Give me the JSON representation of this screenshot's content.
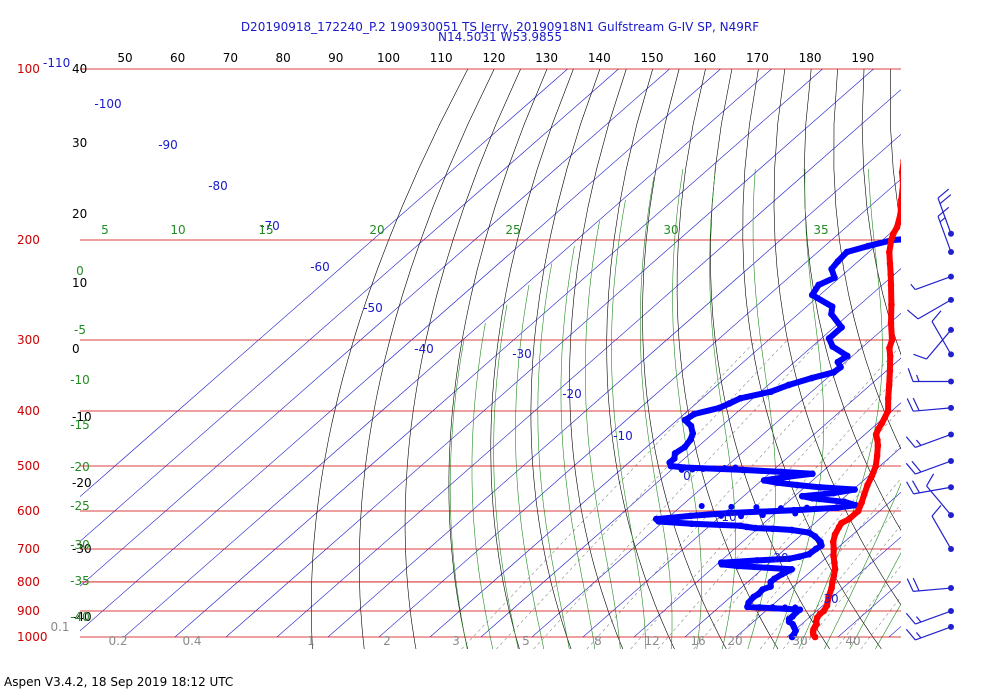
{
  "header": {
    "title_line1": "D20190918_172240_P.2 190930051 TS Jerry, 20190918N1 Gulfstream G-IV SP, N49RF",
    "title_line2": "N14.5031 W53.9855"
  },
  "footer": {
    "text": "Aspen V3.4.2, 18 Sep 2019  18:12 UTC"
  },
  "colors": {
    "temperature": "#ff0000",
    "dewpoint": "#0000ff",
    "isobar": "#cc0000",
    "isotherm": "#1a1acc",
    "dry_adiabat": "#000000",
    "moist_adiabat": "#228b22",
    "mixing_ratio": "#8a8a8a",
    "wind_barb": "#2222cc"
  },
  "chart_data": {
    "type": "skew-t",
    "title": "D20190918_172240_P.2 190930051 TS Jerry, 20190918N1 Gulfstream G-IV SP, N49RF",
    "subtitle": "N14.5031 W53.9855",
    "pressure_axis": {
      "scale": "log",
      "range_hPa": [
        100,
        1000
      ],
      "tick_labels": [
        "100",
        "200",
        "300",
        "400",
        "500",
        "600",
        "700",
        "800",
        "900",
        "1000"
      ],
      "top_extra_label": "-110"
    },
    "height_axis_labels": [
      "40",
      "30",
      "20",
      "10",
      "0",
      "-10",
      "-20",
      "-30",
      "-40"
    ],
    "top_scale_labels": [
      "50",
      "60",
      "70",
      "80",
      "90",
      "100",
      "110",
      "120",
      "130",
      "140",
      "150",
      "160",
      "170",
      "180",
      "190"
    ],
    "isotherm_labels": [
      "-100",
      "-90",
      "-80",
      "-70",
      "-60",
      "-50",
      "-40",
      "-30",
      "-20",
      "-10",
      "0",
      "10",
      "20",
      "30"
    ],
    "moist_adiabat_labels_top": [
      "5",
      "10",
      "15",
      "20",
      "25",
      "30",
      "35"
    ],
    "moist_adiabat_labels_left": [
      "0",
      "-5",
      "-10",
      "-15",
      "-20",
      "-25",
      "-30",
      "-35",
      "-40"
    ],
    "mixing_ratio_labels": [
      "0.1",
      "0.2",
      "0.4",
      "1",
      "2",
      "3",
      "5",
      "8",
      "12",
      "16",
      "20",
      "30",
      "40"
    ],
    "temperature_profile": [
      {
        "p": 1000,
        "t": 25.5
      },
      {
        "p": 990,
        "t": 24.6
      },
      {
        "p": 980,
        "t": 24.0
      },
      {
        "p": 970,
        "t": 23.5
      },
      {
        "p": 960,
        "t": 23.2
      },
      {
        "p": 950,
        "t": 23.0
      },
      {
        "p": 940,
        "t": 22.3
      },
      {
        "p": 925,
        "t": 21.6
      },
      {
        "p": 910,
        "t": 21.3
      },
      {
        "p": 900,
        "t": 21.4
      },
      {
        "p": 880,
        "t": 20.8
      },
      {
        "p": 850,
        "t": 19.2
      },
      {
        "p": 820,
        "t": 17.8
      },
      {
        "p": 800,
        "t": 16.6
      },
      {
        "p": 780,
        "t": 15.5
      },
      {
        "p": 760,
        "t": 14.3
      },
      {
        "p": 740,
        "t": 12.7
      },
      {
        "p": 720,
        "t": 11.0
      },
      {
        "p": 700,
        "t": 9.5
      },
      {
        "p": 680,
        "t": 7.8
      },
      {
        "p": 660,
        "t": 6.5
      },
      {
        "p": 640,
        "t": 5.6
      },
      {
        "p": 630,
        "t": 5.2
      },
      {
        "p": 620,
        "t": 5.8
      },
      {
        "p": 600,
        "t": 5.8
      },
      {
        "p": 580,
        "t": 4.6
      },
      {
        "p": 560,
        "t": 3.2
      },
      {
        "p": 540,
        "t": 1.8
      },
      {
        "p": 520,
        "t": 0.6
      },
      {
        "p": 500,
        "t": -0.8
      },
      {
        "p": 480,
        "t": -2.8
      },
      {
        "p": 460,
        "t": -5.0
      },
      {
        "p": 450,
        "t": -6.3
      },
      {
        "p": 440,
        "t": -7.8
      },
      {
        "p": 430,
        "t": -8.6
      },
      {
        "p": 420,
        "t": -9.2
      },
      {
        "p": 400,
        "t": -10.7
      },
      {
        "p": 380,
        "t": -13.5
      },
      {
        "p": 360,
        "t": -16.3
      },
      {
        "p": 340,
        "t": -19.3
      },
      {
        "p": 320,
        "t": -22.6
      },
      {
        "p": 310,
        "t": -24.5
      },
      {
        "p": 300,
        "t": -25.8
      },
      {
        "p": 280,
        "t": -29.8
      },
      {
        "p": 260,
        "t": -33.8
      },
      {
        "p": 240,
        "t": -38.3
      },
      {
        "p": 230,
        "t": -40.7
      },
      {
        "p": 220,
        "t": -43.3
      },
      {
        "p": 210,
        "t": -46.0
      },
      {
        "p": 200,
        "t": -48.3
      },
      {
        "p": 195,
        "t": -49.3
      },
      {
        "p": 190,
        "t": -50.0
      },
      {
        "p": 180,
        "t": -52.3
      },
      {
        "p": 170,
        "t": -55.3
      },
      {
        "p": 160,
        "t": -58.3
      },
      {
        "p": 152,
        "t": -61.3
      },
      {
        "p": 145,
        "t": -63.6
      }
    ],
    "temperature_outlier": {
      "p": 136,
      "t": -66.2
    },
    "dewpoint_profile": [
      {
        "p": 1000,
        "td": 21.0
      },
      {
        "p": 990,
        "td": 20.8
      },
      {
        "p": 975,
        "td": 20.3
      },
      {
        "p": 960,
        "td": 19.1
      },
      {
        "p": 950,
        "td": 18.3
      },
      {
        "p": 940,
        "td": 17.0
      },
      {
        "p": 930,
        "td": 16.4
      },
      {
        "p": 920,
        "td": 16.5
      },
      {
        "p": 905,
        "td": 16.3
      },
      {
        "p": 895,
        "td": 16.4
      },
      {
        "p": 890,
        "td": 11.0
      },
      {
        "p": 885,
        "td": 5.5
      },
      {
        "p": 870,
        "td": 4.8
      },
      {
        "p": 850,
        "td": 4.5
      },
      {
        "p": 840,
        "td": 4.8
      },
      {
        "p": 825,
        "td": 4.6
      },
      {
        "p": 815,
        "td": 5.5
      },
      {
        "p": 800,
        "td": 4.5
      },
      {
        "p": 790,
        "td": 4.5
      },
      {
        "p": 775,
        "td": 5.0
      },
      {
        "p": 760,
        "td": 5.8
      },
      {
        "p": 750,
        "td": -5.5
      },
      {
        "p": 745,
        "td": -9.0
      },
      {
        "p": 740,
        "td": -9.5
      },
      {
        "p": 733,
        "td": -3.0
      },
      {
        "p": 728,
        "td": 3.0
      },
      {
        "p": 722,
        "td": 4.5
      },
      {
        "p": 715,
        "td": 5.8
      },
      {
        "p": 700,
        "td": 6.0
      },
      {
        "p": 690,
        "td": 6.3
      },
      {
        "p": 680,
        "td": 5.3
      },
      {
        "p": 665,
        "td": 3.0
      },
      {
        "p": 655,
        "td": 1.0
      },
      {
        "p": 648,
        "td": -3.0
      },
      {
        "p": 645,
        "td": -7.0
      },
      {
        "p": 643,
        "td": -10.5
      },
      {
        "p": 640,
        "td": -12.5
      },
      {
        "p": 637,
        "td": -14.0
      },
      {
        "p": 632,
        "td": -24.0
      },
      {
        "p": 626,
        "td": -31.0
      },
      {
        "p": 620,
        "td": -32.0
      },
      {
        "p": 612,
        "td": -26.0
      },
      {
        "p": 605,
        "td": -19.0
      },
      {
        "p": 598,
        "td": -7.0
      },
      {
        "p": 592,
        "td": 1.0
      },
      {
        "p": 586,
        "td": 4.0
      },
      {
        "p": 578,
        "td": 1.0
      },
      {
        "p": 570,
        "td": -6.0
      },
      {
        "p": 565,
        "td": -8.5
      },
      {
        "p": 558,
        "td": -3.0
      },
      {
        "p": 550,
        "td": 0.3
      },
      {
        "p": 545,
        "td": -7.0
      },
      {
        "p": 540,
        "td": -12.0
      },
      {
        "p": 535,
        "td": -16.5
      },
      {
        "p": 530,
        "td": -19.5
      },
      {
        "p": 522,
        "td": -15.5
      },
      {
        "p": 516,
        "td": -11.5
      },
      {
        "p": 512,
        "td": -18.0
      },
      {
        "p": 508,
        "td": -26.0
      },
      {
        "p": 503,
        "td": -38.0
      },
      {
        "p": 500,
        "td": -41.0
      },
      {
        "p": 493,
        "td": -42.0
      },
      {
        "p": 485,
        "td": -42.0
      },
      {
        "p": 475,
        "td": -43.0
      },
      {
        "p": 463,
        "td": -42.5
      },
      {
        "p": 450,
        "td": -43.0
      },
      {
        "p": 438,
        "td": -44.0
      },
      {
        "p": 425,
        "td": -46.0
      },
      {
        "p": 415,
        "td": -48.5
      },
      {
        "p": 405,
        "td": -48.0
      },
      {
        "p": 395,
        "td": -44.5
      },
      {
        "p": 388,
        "td": -43.5
      },
      {
        "p": 380,
        "td": -42.5
      },
      {
        "p": 370,
        "td": -38.0
      },
      {
        "p": 360,
        "td": -36.0
      },
      {
        "p": 350,
        "td": -33.0
      },
      {
        "p": 342,
        "td": -30.0
      },
      {
        "p": 335,
        "td": -29.8
      },
      {
        "p": 328,
        "td": -31.5
      },
      {
        "p": 320,
        "td": -31.0
      },
      {
        "p": 308,
        "td": -36.0
      },
      {
        "p": 298,
        "td": -38.5
      },
      {
        "p": 285,
        "td": -38.5
      },
      {
        "p": 270,
        "td": -43.5
      },
      {
        "p": 262,
        "td": -45.0
      },
      {
        "p": 250,
        "td": -51.5
      },
      {
        "p": 240,
        "td": -52.5
      },
      {
        "p": 233,
        "td": -51.0
      },
      {
        "p": 225,
        "td": -53.5
      },
      {
        "p": 218,
        "td": -54.0
      },
      {
        "p": 210,
        "td": -54.3
      },
      {
        "p": 205,
        "td": -51.5
      },
      {
        "p": 200,
        "td": -48.0
      },
      {
        "p": 196,
        "td": -35.0
      },
      {
        "p": 193,
        "td": -28.5
      }
    ],
    "dewpoint_sparse_points": [
      {
        "p": 508,
        "td": -38.0
      },
      {
        "p": 507,
        "td": -36.0
      },
      {
        "p": 506,
        "td": -34.0
      },
      {
        "p": 505,
        "td": -32.0
      },
      {
        "p": 504,
        "td": -30.0
      },
      {
        "p": 503,
        "td": -28.0
      },
      {
        "p": 610,
        "td": -25.0
      },
      {
        "p": 612,
        "td": -20.0
      },
      {
        "p": 613,
        "td": -16.0
      },
      {
        "p": 610,
        "td": -12.0
      },
      {
        "p": 606,
        "td": -6.0
      },
      {
        "p": 886,
        "td": 8.0
      },
      {
        "p": 886,
        "td": 10.5
      },
      {
        "p": 887,
        "td": 13.0
      },
      {
        "p": 887,
        "td": 15.0
      },
      {
        "p": 588,
        "td": -26.0
      },
      {
        "p": 590,
        "td": -20.0
      },
      {
        "p": 591,
        "td": -15.0
      },
      {
        "p": 593,
        "td": -10.0
      },
      {
        "p": 592,
        "td": -5.0
      }
    ],
    "wind_barbs": [
      {
        "p": 195,
        "dir": 340,
        "spd": 20
      },
      {
        "p": 210,
        "dir": 340,
        "spd": 15
      },
      {
        "p": 232,
        "dir": 250,
        "spd": 5
      },
      {
        "p": 255,
        "dir": 240,
        "spd": 10
      },
      {
        "p": 288,
        "dir": 220,
        "spd": 10
      },
      {
        "p": 318,
        "dir": 330,
        "spd": 10
      },
      {
        "p": 355,
        "dir": 270,
        "spd": 15
      },
      {
        "p": 395,
        "dir": 265,
        "spd": 20
      },
      {
        "p": 440,
        "dir": 250,
        "spd": 15
      },
      {
        "p": 490,
        "dir": 250,
        "spd": 20
      },
      {
        "p": 545,
        "dir": 260,
        "spd": 20
      },
      {
        "p": 610,
        "dir": 320,
        "spd": 10
      },
      {
        "p": 700,
        "dir": 330,
        "spd": 10
      },
      {
        "p": 820,
        "dir": 265,
        "spd": 20
      },
      {
        "p": 900,
        "dir": 250,
        "spd": 15
      },
      {
        "p": 960,
        "dir": 250,
        "spd": 15
      }
    ]
  }
}
